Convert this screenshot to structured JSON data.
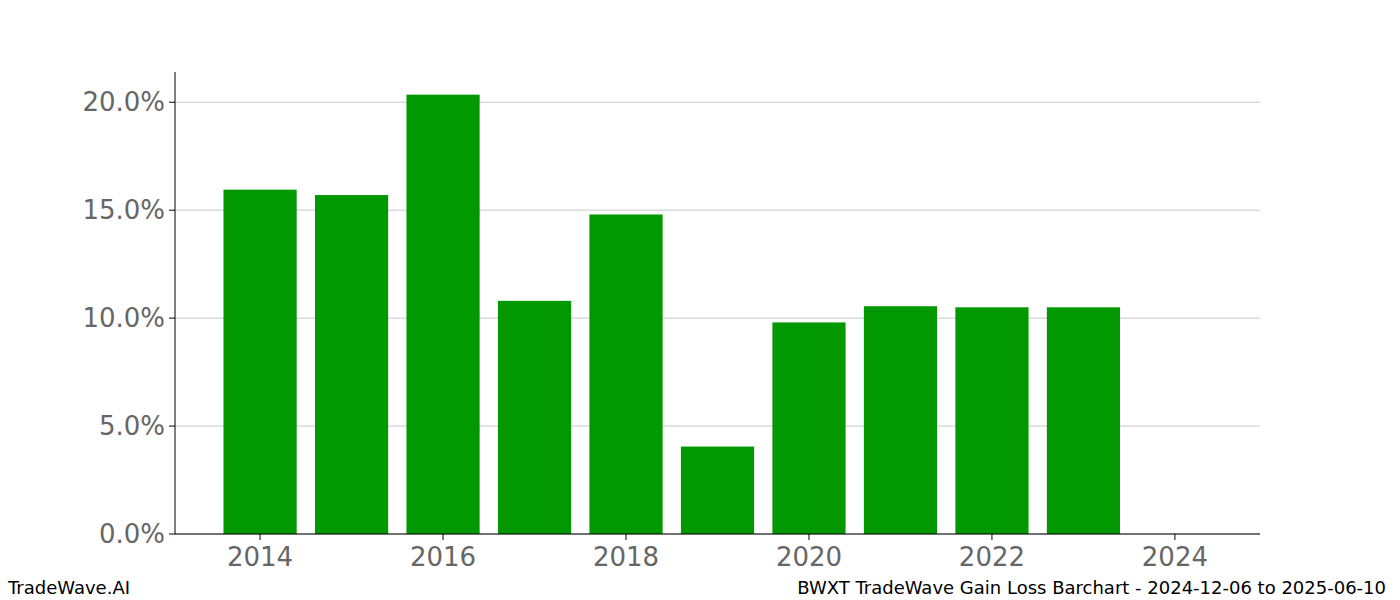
{
  "chart_data": {
    "type": "bar",
    "title": "BWXT TradeWave Gain Loss Barchart - 2024-12-06 to 2025-06-10",
    "annotations": [
      "TradeWave.AI"
    ],
    "x": [
      2014,
      2015,
      2016,
      2017,
      2018,
      2019,
      2020,
      2021,
      2022,
      2023
    ],
    "values": [
      15.95,
      15.7,
      20.35,
      10.8,
      14.8,
      4.05,
      9.8,
      10.55,
      10.5,
      10.5
    ],
    "color": "#029802",
    "xlim": [
      2013.07,
      2024.93
    ],
    "xticks": [
      2014,
      2016,
      2018,
      2020,
      2022,
      2024
    ],
    "ylim": [
      0,
      21.4
    ],
    "yticks": [
      {
        "value": 0,
        "label": "0.0%"
      },
      {
        "value": 5,
        "label": "5.0%"
      },
      {
        "value": 10,
        "label": "10.0%"
      },
      {
        "value": 15,
        "label": "15.0%"
      },
      {
        "value": 20,
        "label": "20.0%"
      }
    ],
    "grid": true
  }
}
